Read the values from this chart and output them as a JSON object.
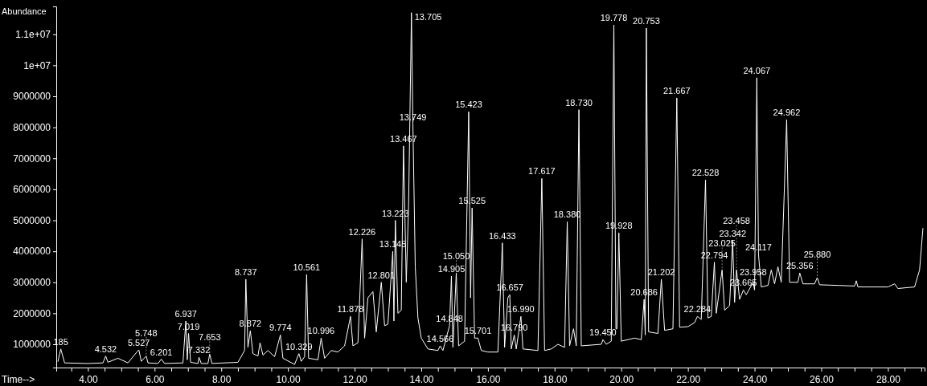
{
  "chart_data": {
    "type": "line",
    "xlabel": "Time-->",
    "ylabel": "Abundance",
    "xlim": [
      3.05,
      29.1
    ],
    "ylim": [
      250000,
      11900000
    ],
    "xticks": [
      {
        "value": 3.5,
        "label": null
      },
      {
        "value": 4,
        "label": "4.00"
      },
      {
        "value": 4.5,
        "label": null
      },
      {
        "value": 5,
        "label": null
      },
      {
        "value": 5.5,
        "label": null
      },
      {
        "value": 6,
        "label": "6.00"
      },
      {
        "value": 6.5,
        "label": null
      },
      {
        "value": 7,
        "label": null
      },
      {
        "value": 7.5,
        "label": null
      },
      {
        "value": 8,
        "label": "8.00"
      },
      {
        "value": 8.5,
        "label": null
      },
      {
        "value": 9,
        "label": null
      },
      {
        "value": 9.5,
        "label": null
      },
      {
        "value": 10,
        "label": "10.00"
      },
      {
        "value": 10.5,
        "label": null
      },
      {
        "value": 11,
        "label": null
      },
      {
        "value": 11.5,
        "label": null
      },
      {
        "value": 12,
        "label": "12.00"
      },
      {
        "value": 12.5,
        "label": null
      },
      {
        "value": 13,
        "label": null
      },
      {
        "value": 13.5,
        "label": null
      },
      {
        "value": 14,
        "label": "14.00"
      },
      {
        "value": 14.5,
        "label": null
      },
      {
        "value": 15,
        "label": null
      },
      {
        "value": 15.5,
        "label": null
      },
      {
        "value": 16,
        "label": "16.00"
      },
      {
        "value": 16.5,
        "label": null
      },
      {
        "value": 17,
        "label": null
      },
      {
        "value": 17.5,
        "label": null
      },
      {
        "value": 18,
        "label": "18.00"
      },
      {
        "value": 18.5,
        "label": null
      },
      {
        "value": 19,
        "label": null
      },
      {
        "value": 19.5,
        "label": null
      },
      {
        "value": 20,
        "label": "20.00"
      },
      {
        "value": 20.5,
        "label": null
      },
      {
        "value": 21,
        "label": null
      },
      {
        "value": 21.5,
        "label": null
      },
      {
        "value": 22,
        "label": "22.00"
      },
      {
        "value": 22.5,
        "label": null
      },
      {
        "value": 23,
        "label": null
      },
      {
        "value": 23.5,
        "label": null
      },
      {
        "value": 24,
        "label": "24.00"
      },
      {
        "value": 24.5,
        "label": null
      },
      {
        "value": 25,
        "label": null
      },
      {
        "value": 25.5,
        "label": null
      },
      {
        "value": 26,
        "label": "26.00"
      },
      {
        "value": 26.5,
        "label": null
      },
      {
        "value": 27,
        "label": null
      },
      {
        "value": 27.5,
        "label": null
      },
      {
        "value": 28,
        "label": "28.00"
      },
      {
        "value": 28.5,
        "label": null
      },
      {
        "value": 29,
        "label": null
      }
    ],
    "yticks": [
      1000000,
      2000000,
      3000000,
      4000000,
      5000000,
      6000000,
      7000000,
      8000000,
      9000000,
      {
        "value": 10000000,
        "label": "1e+07"
      },
      {
        "value": 11000000,
        "label": "1.1e+07"
      }
    ],
    "marker": "none",
    "series": [
      {
        "color": "#ffffff",
        "x": [
          3.1,
          3.185,
          3.3,
          4.0,
          4.45,
          4.532,
          4.6,
          4.9,
          5.2,
          5.467,
          5.527,
          5.6,
          5.748,
          5.8,
          6.1,
          6.201,
          6.3,
          6.85,
          6.937,
          6.98,
          7.019,
          7.08,
          7.3,
          7.332,
          7.4,
          7.6,
          7.653,
          7.72,
          8.5,
          8.7,
          8.737,
          8.8,
          8.872,
          8.95,
          9.1,
          9.163,
          9.25,
          9.4,
          9.6,
          9.774,
          9.85,
          10.2,
          10.329,
          10.4,
          10.5,
          10.561,
          10.62,
          10.9,
          10.996,
          11.1,
          11.3,
          11.5,
          11.7,
          11.878,
          11.95,
          12.1,
          12.226,
          12.3,
          12.4,
          12.55,
          12.65,
          12.801,
          12.9,
          13.0,
          13.145,
          13.18,
          13.223,
          13.3,
          13.4,
          13.467,
          13.55,
          13.62,
          13.705,
          13.749,
          13.82,
          13.9,
          14.0,
          14.2,
          14.5,
          14.566,
          14.65,
          14.848,
          14.905,
          14.95,
          15.05,
          15.12,
          15.3,
          15.423,
          15.48,
          15.525,
          15.6,
          15.701,
          15.8,
          16.0,
          16.3,
          16.433,
          16.5,
          16.598,
          16.657,
          16.7,
          16.79,
          16.85,
          16.99,
          17.05,
          17.5,
          17.617,
          17.7,
          17.9,
          18.1,
          18.3,
          18.38,
          18.45,
          18.567,
          18.65,
          18.73,
          18.8,
          19.4,
          19.45,
          19.55,
          19.7,
          19.778,
          19.84,
          19.87,
          19.928,
          20.0,
          20.4,
          20.6,
          20.686,
          20.72,
          20.753,
          20.82,
          21.1,
          21.202,
          21.3,
          21.55,
          21.667,
          21.75,
          22.0,
          22.2,
          22.284,
          22.4,
          22.528,
          22.6,
          22.7,
          22.794,
          22.85,
          23.025,
          23.1,
          23.25,
          23.342,
          23.4,
          23.458,
          23.55,
          23.665,
          23.75,
          23.958,
          24.0,
          24.067,
          24.117,
          24.2,
          24.4,
          24.5,
          24.6,
          24.7,
          24.8,
          24.962,
          25.05,
          25.3,
          25.356,
          25.45,
          25.8,
          25.88,
          25.95,
          26.5,
          27.0,
          27.05,
          27.1,
          28.0,
          28.2,
          28.3,
          28.8,
          28.95,
          29.05
        ],
        "values": [
          450000,
          850000,
          400000,
          380000,
          400000,
          620000,
          420000,
          550000,
          400000,
          750000,
          820000,
          450000,
          620000,
          400000,
          380000,
          520000,
          380000,
          400000,
          1750000,
          500000,
          1350000,
          420000,
          380000,
          580000,
          380000,
          380000,
          680000,
          380000,
          420000,
          800000,
          3100000,
          900000,
          1440000,
          700000,
          620000,
          1050000,
          650000,
          800000,
          600000,
          1300000,
          550000,
          350000,
          700000,
          450000,
          600000,
          3250000,
          550000,
          500000,
          1200000,
          550000,
          800000,
          750000,
          950000,
          1900000,
          950000,
          1050000,
          4400000,
          1200000,
          2500000,
          2700000,
          1400000,
          3000000,
          1600000,
          1650000,
          4000000,
          1750000,
          5000000,
          2000000,
          2100000,
          7400000,
          3000000,
          5500000,
          11700000,
          8100000,
          3500000,
          1850000,
          1200000,
          850000,
          800000,
          950000,
          800000,
          1600000,
          3200000,
          900000,
          3300000,
          950000,
          1100000,
          8500000,
          2500000,
          5400000,
          1200000,
          1200000,
          800000,
          750000,
          750000,
          4270000,
          900000,
          2500000,
          2600000,
          850000,
          1300000,
          850000,
          1900000,
          850000,
          800000,
          6350000,
          800000,
          850000,
          1000000,
          900000,
          4950000,
          950000,
          1500000,
          950000,
          8570000,
          950000,
          1000000,
          1150000,
          1000000,
          1100000,
          11300000,
          1500000,
          1500000,
          4600000,
          1100000,
          1200000,
          1150000,
          2450000,
          1300000,
          11200000,
          1400000,
          1350000,
          3100000,
          1450000,
          1500000,
          8950000,
          1550000,
          1570000,
          1700000,
          1900000,
          1800000,
          6300000,
          1850000,
          1900000,
          3650000,
          2000000,
          3400000,
          2100000,
          2250000,
          4350000,
          2350000,
          3400000,
          2450000,
          2750000,
          2600000,
          3000000,
          2750000,
          9600000,
          3900000,
          2850000,
          2900000,
          3400000,
          2950000,
          3500000,
          3000000,
          8250000,
          3000000,
          3000000,
          3300000,
          2950000,
          2950000,
          3150000,
          2920000,
          2900000,
          2880000,
          3050000,
          2850000,
          2850000,
          2950000,
          2800000,
          2850000,
          3400000,
          4740000
        ]
      }
    ],
    "annotations": [
      {
        "text": "185",
        "x": 3.185,
        "y": 850000
      },
      {
        "text": "4.532",
        "x": 4.532,
        "y": 620000
      },
      {
        "text": "5.527",
        "x": 5.527,
        "y": 820000
      },
      {
        "text": "5.748",
        "x": 5.748,
        "y": 620000
      },
      {
        "text": "6.201",
        "x": 6.201,
        "y": 520000
      },
      {
        "text": "6.937",
        "x": 6.937,
        "y": 1750000
      },
      {
        "text": "7.019",
        "x": 7.019,
        "y": 1350000
      },
      {
        "text": "7.332",
        "x": 7.332,
        "y": 580000
      },
      {
        "text": "7.653",
        "x": 7.653,
        "y": 680000
      },
      {
        "text": "8.737",
        "x": 8.737,
        "y": 3100000
      },
      {
        "text": "8.872",
        "x": 8.872,
        "y": 1440000
      },
      {
        "text": "9.774",
        "x": 9.774,
        "y": 1300000
      },
      {
        "text": "10.329",
        "x": 10.329,
        "y": 700000
      },
      {
        "text": "10.561",
        "x": 10.561,
        "y": 3250000
      },
      {
        "text": "10.996",
        "x": 10.996,
        "y": 1200000
      },
      {
        "text": "11.878",
        "x": 11.878,
        "y": 1900000
      },
      {
        "text": "12.226",
        "x": 12.226,
        "y": 4400000
      },
      {
        "text": "12.801",
        "x": 12.801,
        "y": 3000000
      },
      {
        "text": "13.145",
        "x": 13.145,
        "y": 4000000
      },
      {
        "text": "13.223",
        "x": 13.223,
        "y": 5000000
      },
      {
        "text": "13.467",
        "x": 13.467,
        "y": 7400000
      },
      {
        "text": "13.705",
        "x": 13.705,
        "y": 11700000
      },
      {
        "text": "13.749",
        "x": 13.749,
        "y": 8100000
      },
      {
        "text": "14.566",
        "x": 14.566,
        "y": 950000
      },
      {
        "text": "14.848",
        "x": 14.848,
        "y": 1600000
      },
      {
        "text": "14.905",
        "x": 14.905,
        "y": 3200000
      },
      {
        "text": "15.050",
        "x": 15.05,
        "y": 3300000
      },
      {
        "text": "15.423",
        "x": 15.423,
        "y": 8500000
      },
      {
        "text": "15.525",
        "x": 15.525,
        "y": 5400000
      },
      {
        "text": "15.701",
        "x": 15.701,
        "y": 1200000
      },
      {
        "text": "16.433",
        "x": 16.433,
        "y": 4270000
      },
      {
        "text": "16.657",
        "x": 16.657,
        "y": 2600000
      },
      {
        "text": "16.790",
        "x": 16.79,
        "y": 1300000
      },
      {
        "text": "16.990",
        "x": 16.99,
        "y": 1900000
      },
      {
        "text": "17.617",
        "x": 17.617,
        "y": 6350000
      },
      {
        "text": "18.380",
        "x": 18.38,
        "y": 4950000
      },
      {
        "text": "18.730",
        "x": 18.73,
        "y": 8570000
      },
      {
        "text": "19.450",
        "x": 19.45,
        "y": 1150000
      },
      {
        "text": "19.778",
        "x": 19.778,
        "y": 11300000
      },
      {
        "text": "19.928",
        "x": 19.928,
        "y": 4600000
      },
      {
        "text": "20.686",
        "x": 20.686,
        "y": 2450000
      },
      {
        "text": "20.753",
        "x": 20.753,
        "y": 11200000
      },
      {
        "text": "21.202",
        "x": 21.202,
        "y": 3100000
      },
      {
        "text": "21.667",
        "x": 21.667,
        "y": 8950000
      },
      {
        "text": "22.284",
        "x": 22.284,
        "y": 1900000
      },
      {
        "text": "22.528",
        "x": 22.528,
        "y": 6300000
      },
      {
        "text": "22.794",
        "x": 22.794,
        "y": 3650000
      },
      {
        "text": "23.025",
        "x": 23.025,
        "y": 3400000
      },
      {
        "text": "23.342",
        "x": 23.342,
        "y": 4350000
      },
      {
        "text": "23.458",
        "x": 23.458,
        "y": 3400000
      },
      {
        "text": "23.665",
        "x": 23.665,
        "y": 2750000
      },
      {
        "text": "23.958",
        "x": 23.958,
        "y": 3000000
      },
      {
        "text": "24.067",
        "x": 24.067,
        "y": 9600000
      },
      {
        "text": "24.117",
        "x": 24.117,
        "y": 3900000
      },
      {
        "text": "24.962",
        "x": 24.962,
        "y": 8250000
      },
      {
        "text": "25.356",
        "x": 25.356,
        "y": 3300000
      },
      {
        "text": "25.880",
        "x": 25.88,
        "y": 3150000
      }
    ]
  }
}
